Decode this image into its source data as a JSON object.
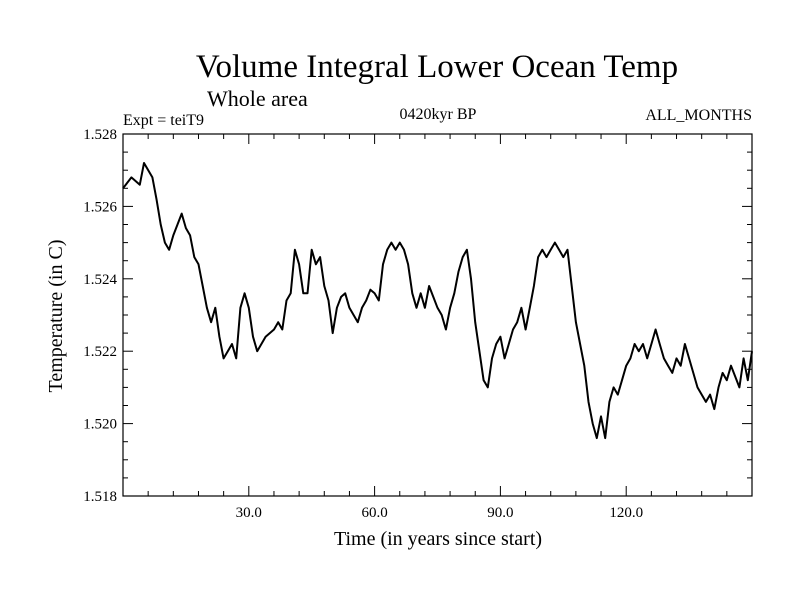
{
  "chart_data": {
    "type": "line",
    "title": "Volume Integral Lower Ocean Temp",
    "subtitle": "Whole area",
    "annotations": {
      "left": "Expt = teiT9",
      "center": "0420kyr BP",
      "right": "ALL_MONTHS"
    },
    "xlabel": "Time (in years since start)",
    "ylabel": "Temperature (in C)",
    "xlim": [
      0,
      150
    ],
    "ylim": [
      1.518,
      1.528
    ],
    "xticks": [
      30,
      60,
      90,
      120
    ],
    "xtick_labels": [
      "30.0",
      "60.0",
      "90.0",
      "120.0"
    ],
    "yticks": [
      1.518,
      1.52,
      1.522,
      1.524,
      1.526,
      1.528
    ],
    "ytick_labels": [
      "1.518",
      "1.520",
      "1.522",
      "1.524",
      "1.526",
      "1.528"
    ],
    "grid": false,
    "series": [
      {
        "name": "Temperature",
        "color": "#000000",
        "x": [
          0,
          2,
          4,
          5,
          7,
          8,
          9,
          10,
          11,
          12,
          13,
          14,
          15,
          16,
          17,
          18,
          19,
          20,
          21,
          22,
          23,
          24,
          25,
          26,
          27,
          28,
          29,
          30,
          31,
          32,
          33,
          34,
          35,
          36,
          37,
          38,
          39,
          40,
          41,
          42,
          43,
          44,
          45,
          46,
          47,
          48,
          49,
          50,
          51,
          52,
          53,
          54,
          55,
          56,
          57,
          58,
          59,
          60,
          61,
          62,
          63,
          64,
          65,
          66,
          67,
          68,
          69,
          70,
          71,
          72,
          73,
          74,
          75,
          76,
          77,
          78,
          79,
          80,
          81,
          82,
          83,
          84,
          85,
          86,
          87,
          88,
          89,
          90,
          91,
          92,
          93,
          94,
          95,
          96,
          97,
          98,
          99,
          100,
          101,
          102,
          103,
          104,
          105,
          106,
          107,
          108,
          109,
          110,
          111,
          112,
          113,
          114,
          115,
          116,
          117,
          118,
          119,
          120,
          121,
          122,
          123,
          124,
          125,
          126,
          127,
          128,
          129,
          130,
          131,
          132,
          133,
          134,
          135,
          136,
          137,
          138,
          139,
          140,
          141,
          142,
          143,
          144,
          145,
          146,
          147,
          148,
          149,
          150
        ],
        "values": [
          1.5265,
          1.5268,
          1.5266,
          1.5272,
          1.5268,
          1.5262,
          1.5255,
          1.525,
          1.5248,
          1.5252,
          1.5255,
          1.5258,
          1.5254,
          1.5252,
          1.5246,
          1.5244,
          1.5238,
          1.5232,
          1.5228,
          1.5232,
          1.5224,
          1.5218,
          1.522,
          1.5222,
          1.5218,
          1.5232,
          1.5236,
          1.5232,
          1.5224,
          1.522,
          1.5222,
          1.5224,
          1.5225,
          1.5226,
          1.5228,
          1.5226,
          1.5234,
          1.5236,
          1.5248,
          1.5244,
          1.5236,
          1.5236,
          1.5248,
          1.5244,
          1.5246,
          1.5238,
          1.5234,
          1.5225,
          1.5232,
          1.5235,
          1.5236,
          1.5232,
          1.523,
          1.5228,
          1.5232,
          1.5234,
          1.5237,
          1.5236,
          1.5234,
          1.5244,
          1.5248,
          1.525,
          1.5248,
          1.525,
          1.5248,
          1.5244,
          1.5236,
          1.5232,
          1.5236,
          1.5232,
          1.5238,
          1.5235,
          1.5232,
          1.523,
          1.5226,
          1.5232,
          1.5236,
          1.5242,
          1.5246,
          1.5248,
          1.524,
          1.5228,
          1.522,
          1.5212,
          1.521,
          1.5218,
          1.5222,
          1.5224,
          1.5218,
          1.5222,
          1.5226,
          1.5228,
          1.5232,
          1.5226,
          1.5232,
          1.5238,
          1.5246,
          1.5248,
          1.5246,
          1.5248,
          1.525,
          1.5248,
          1.5246,
          1.5248,
          1.5238,
          1.5228,
          1.5222,
          1.5216,
          1.5206,
          1.52,
          1.5196,
          1.5202,
          1.5196,
          1.5206,
          1.521,
          1.5208,
          1.5212,
          1.5216,
          1.5218,
          1.5222,
          1.522,
          1.5222,
          1.5218,
          1.5222,
          1.5226,
          1.5222,
          1.5218,
          1.5216,
          1.5214,
          1.5218,
          1.5216,
          1.5222,
          1.5218,
          1.5214,
          1.521,
          1.5208,
          1.5206,
          1.5208,
          1.5204,
          1.521,
          1.5214,
          1.5212,
          1.5216,
          1.5213,
          1.521,
          1.5218,
          1.5212,
          1.522
        ]
      }
    ]
  }
}
